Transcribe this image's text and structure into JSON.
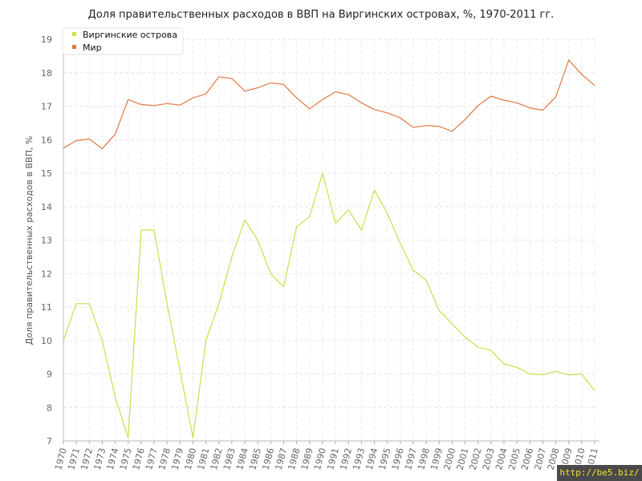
{
  "chart_data": {
    "type": "line",
    "title": "Доля правительственных расходов в ВВП на Виргинских островах, %, 1970-2011 гг.",
    "ylabel": "Доля правительственных расходов в ВВП, %",
    "xlabel": "",
    "ylim": [
      7,
      19
    ],
    "yticks": [
      7,
      8,
      9,
      10,
      11,
      12,
      13,
      14,
      15,
      16,
      17,
      18,
      19
    ],
    "grid": true,
    "legend_position": "top-left",
    "x": [
      1970,
      1971,
      1972,
      1973,
      1974,
      1975,
      1976,
      1977,
      1978,
      1979,
      1980,
      1981,
      1982,
      1983,
      1984,
      1985,
      1986,
      1987,
      1988,
      1989,
      1990,
      1991,
      1992,
      1993,
      1994,
      1995,
      1996,
      1997,
      1998,
      1999,
      2000,
      2001,
      2002,
      2003,
      2004,
      2005,
      2006,
      2007,
      2008,
      2009,
      2010,
      2011
    ],
    "series": [
      {
        "name": "Виргинские острова",
        "color": "#c5e04a",
        "values": [
          10.0,
          11.1,
          11.1,
          10.0,
          8.3,
          7.1,
          13.3,
          13.3,
          11.1,
          9.1,
          7.1,
          10.0,
          11.1,
          12.5,
          13.6,
          13.0,
          12.0,
          11.6,
          13.4,
          13.7,
          15.0,
          13.5,
          13.9,
          13.3,
          14.5,
          13.8,
          12.9,
          12.1,
          11.8,
          10.9,
          10.5,
          10.1,
          9.8,
          9.7,
          9.3,
          9.2,
          9.0,
          8.98,
          9.08,
          8.97,
          9.0,
          8.5
        ]
      },
      {
        "name": "Мир",
        "color": "#e07840",
        "values": [
          15.75,
          15.97,
          16.02,
          15.73,
          16.17,
          17.2,
          17.05,
          17.02,
          17.08,
          17.03,
          17.25,
          17.37,
          17.88,
          17.83,
          17.45,
          17.55,
          17.7,
          17.65,
          17.25,
          16.92,
          17.2,
          17.43,
          17.35,
          17.1,
          16.9,
          16.8,
          16.65,
          16.37,
          16.42,
          16.4,
          16.25,
          16.6,
          17.02,
          17.3,
          17.18,
          17.1,
          16.95,
          16.88,
          17.28,
          18.38,
          17.95,
          17.62
        ]
      }
    ]
  },
  "watermark": "http://be5.biz/"
}
